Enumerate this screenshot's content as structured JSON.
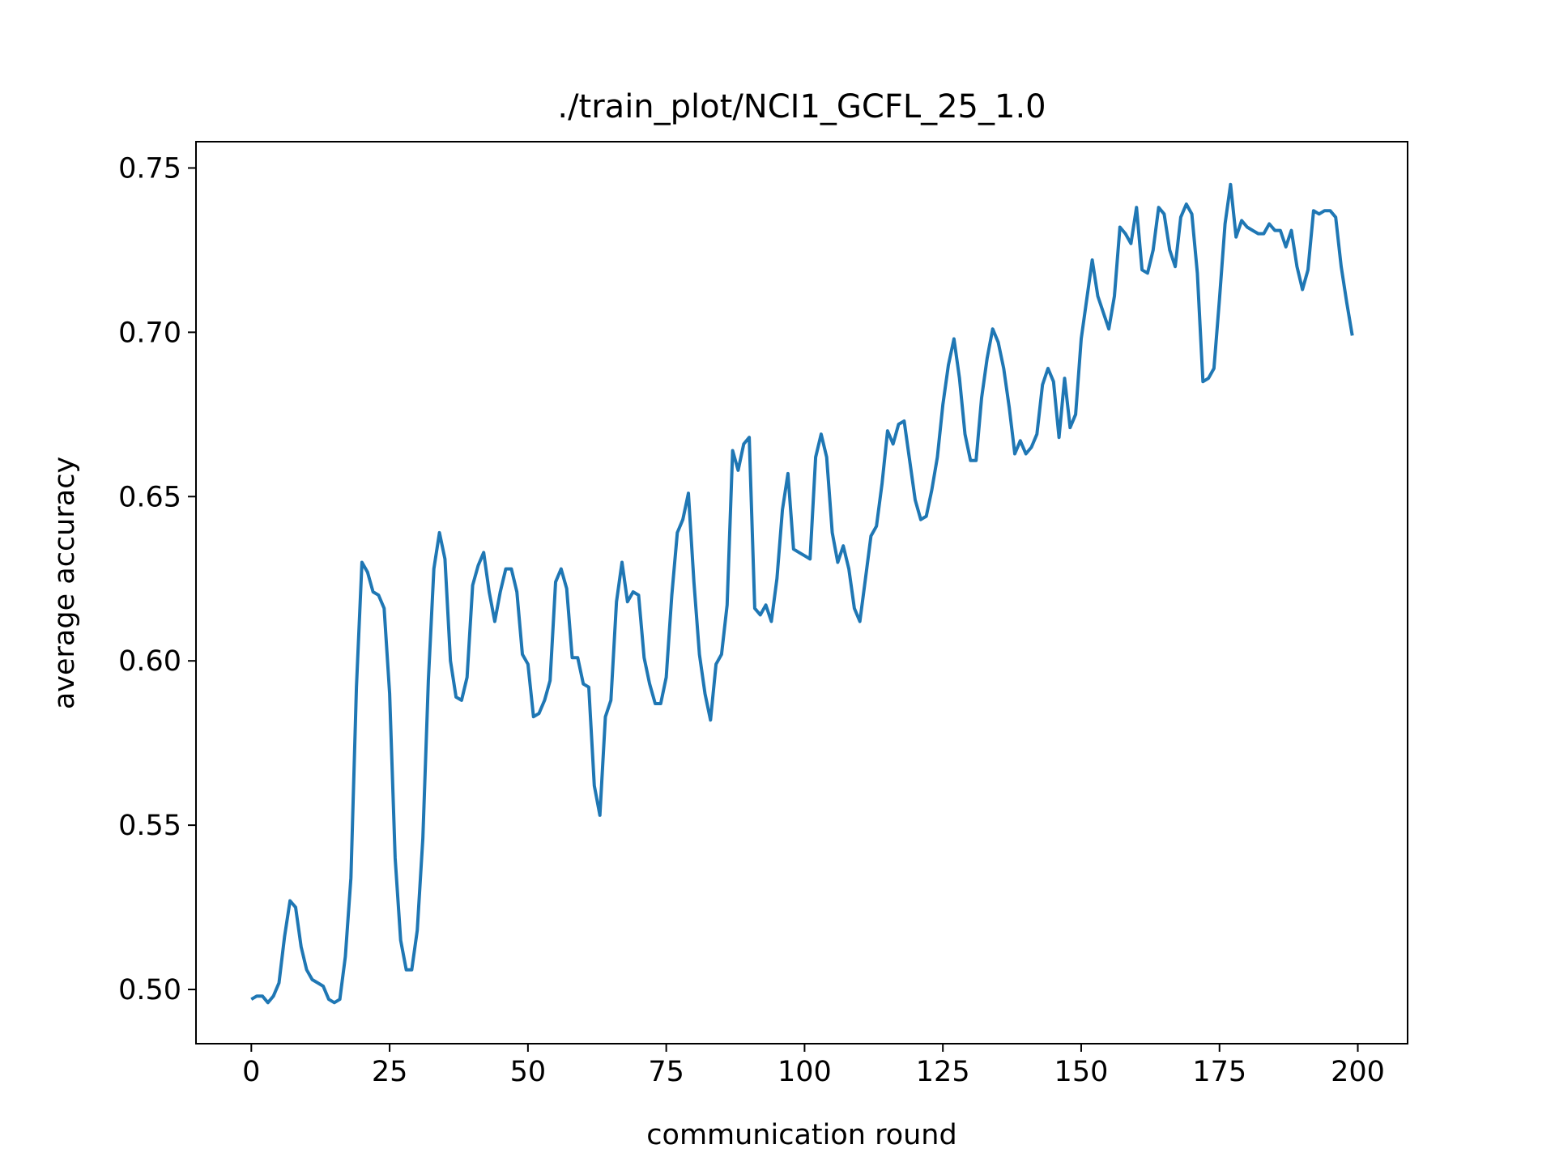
{
  "chart_data": {
    "type": "line",
    "title": "./train_plot/NCI1_GCFL_25_1.0",
    "xlabel": "communication round",
    "ylabel": "average accuracy",
    "xlim": [
      -10,
      209
    ],
    "ylim": [
      0.4835,
      0.758
    ],
    "xticks": [
      0,
      25,
      50,
      75,
      100,
      125,
      150,
      175,
      200
    ],
    "yticks": [
      0.5,
      0.55,
      0.6,
      0.65,
      0.7,
      0.75
    ],
    "xtick_labels": [
      "0",
      "25",
      "50",
      "75",
      "100",
      "125",
      "150",
      "175",
      "200"
    ],
    "ytick_labels": [
      "0.50",
      "0.55",
      "0.60",
      "0.65",
      "0.70",
      "0.75"
    ],
    "grid": false,
    "legend": "none",
    "series": [
      {
        "color": "#1f77b4",
        "x": [
          0,
          1,
          2,
          3,
          4,
          5,
          6,
          7,
          8,
          9,
          10,
          11,
          12,
          13,
          14,
          15,
          16,
          17,
          18,
          19,
          20,
          21,
          22,
          23,
          24,
          25,
          26,
          27,
          28,
          29,
          30,
          31,
          32,
          33,
          34,
          35,
          36,
          37,
          38,
          39,
          40,
          41,
          42,
          43,
          44,
          45,
          46,
          47,
          48,
          49,
          50,
          51,
          52,
          53,
          54,
          55,
          56,
          57,
          58,
          59,
          60,
          61,
          62,
          63,
          64,
          65,
          66,
          67,
          68,
          69,
          70,
          71,
          72,
          73,
          74,
          75,
          76,
          77,
          78,
          79,
          80,
          81,
          82,
          83,
          84,
          85,
          86,
          87,
          88,
          89,
          90,
          91,
          92,
          93,
          94,
          95,
          96,
          97,
          98,
          99,
          100,
          101,
          102,
          103,
          104,
          105,
          106,
          107,
          108,
          109,
          110,
          111,
          112,
          113,
          114,
          115,
          116,
          117,
          118,
          119,
          120,
          121,
          122,
          123,
          124,
          125,
          126,
          127,
          128,
          129,
          130,
          131,
          132,
          133,
          134,
          135,
          136,
          137,
          138,
          139,
          140,
          141,
          142,
          143,
          144,
          145,
          146,
          147,
          148,
          149,
          150,
          151,
          152,
          153,
          154,
          155,
          156,
          157,
          158,
          159,
          160,
          161,
          162,
          163,
          164,
          165,
          166,
          167,
          168,
          169,
          170,
          171,
          172,
          173,
          174,
          175,
          176,
          177,
          178,
          179,
          180,
          181,
          182,
          183,
          184,
          185,
          186,
          187,
          188,
          189,
          190,
          191,
          192,
          193,
          194,
          195,
          196,
          197,
          198,
          199
        ],
        "values": [
          0.497,
          0.498,
          0.498,
          0.496,
          0.498,
          0.502,
          0.516,
          0.527,
          0.525,
          0.513,
          0.506,
          0.503,
          0.502,
          0.501,
          0.497,
          0.496,
          0.497,
          0.51,
          0.534,
          0.592,
          0.63,
          0.627,
          0.621,
          0.62,
          0.616,
          0.59,
          0.54,
          0.515,
          0.506,
          0.506,
          0.518,
          0.546,
          0.594,
          0.628,
          0.639,
          0.631,
          0.6,
          0.589,
          0.588,
          0.595,
          0.623,
          0.629,
          0.633,
          0.621,
          0.612,
          0.621,
          0.628,
          0.628,
          0.621,
          0.602,
          0.599,
          0.583,
          0.584,
          0.588,
          0.594,
          0.624,
          0.628,
          0.622,
          0.601,
          0.601,
          0.593,
          0.592,
          0.562,
          0.553,
          0.583,
          0.588,
          0.618,
          0.63,
          0.618,
          0.621,
          0.62,
          0.601,
          0.593,
          0.587,
          0.587,
          0.595,
          0.62,
          0.639,
          0.643,
          0.651,
          0.624,
          0.602,
          0.59,
          0.582,
          0.599,
          0.602,
          0.617,
          0.664,
          0.658,
          0.666,
          0.668,
          0.616,
          0.614,
          0.617,
          0.612,
          0.625,
          0.646,
          0.657,
          0.634,
          0.633,
          0.632,
          0.631,
          0.662,
          0.669,
          0.662,
          0.639,
          0.63,
          0.635,
          0.628,
          0.616,
          0.612,
          0.625,
          0.638,
          0.641,
          0.654,
          0.67,
          0.666,
          0.672,
          0.673,
          0.661,
          0.649,
          0.643,
          0.644,
          0.652,
          0.662,
          0.678,
          0.69,
          0.698,
          0.686,
          0.669,
          0.661,
          0.661,
          0.68,
          0.692,
          0.701,
          0.697,
          0.689,
          0.677,
          0.663,
          0.667,
          0.663,
          0.665,
          0.669,
          0.684,
          0.689,
          0.685,
          0.668,
          0.686,
          0.671,
          0.675,
          0.698,
          0.71,
          0.722,
          0.711,
          0.706,
          0.701,
          0.711,
          0.732,
          0.73,
          0.727,
          0.738,
          0.719,
          0.718,
          0.725,
          0.738,
          0.736,
          0.725,
          0.72,
          0.735,
          0.739,
          0.736,
          0.718,
          0.685,
          0.686,
          0.689,
          0.71,
          0.733,
          0.745,
          0.729,
          0.734,
          0.732,
          0.731,
          0.73,
          0.73,
          0.733,
          0.731,
          0.731,
          0.726,
          0.731,
          0.72,
          0.713,
          0.719,
          0.737,
          0.736,
          0.737,
          0.737,
          0.735,
          0.72,
          0.709,
          0.699
        ]
      }
    ]
  }
}
